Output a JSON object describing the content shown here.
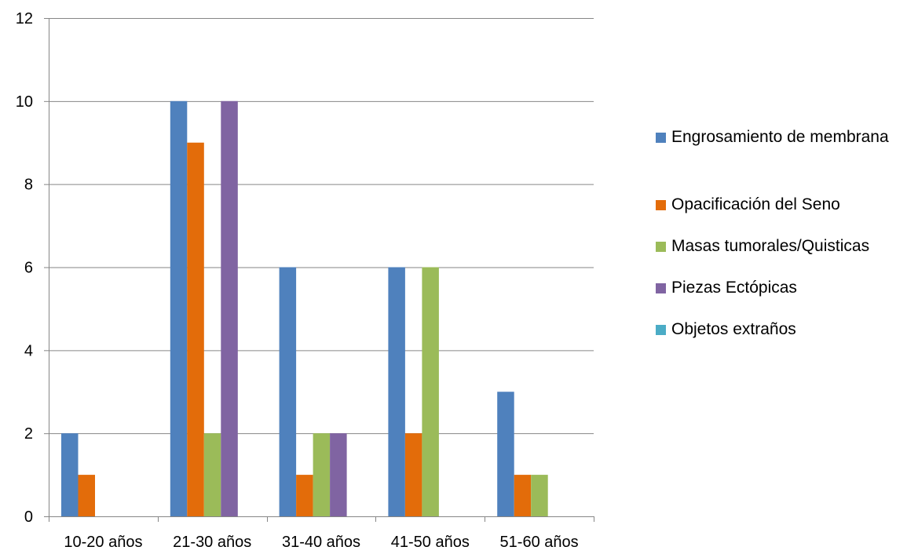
{
  "chart_data": {
    "type": "bar",
    "categories": [
      "10-20 años",
      "21-30 años",
      "31-40 años",
      "41-50 años",
      "51-60 años"
    ],
    "series": [
      {
        "name": "Engrosamiento de membrana",
        "color": "#4F81BD",
        "values": [
          2,
          10,
          6,
          6,
          3
        ]
      },
      {
        "name": "Opacificación del Seno",
        "color": "#E36C0A",
        "values": [
          1,
          9,
          1,
          2,
          1
        ]
      },
      {
        "name": "Masas tumorales/Quisticas",
        "color": "#9BBB59",
        "values": [
          0,
          2,
          2,
          6,
          1
        ]
      },
      {
        "name": "Piezas Ectópicas",
        "color": "#8064A2",
        "values": [
          0,
          10,
          2,
          0,
          0
        ]
      },
      {
        "name": "Objetos extraños",
        "color": "#4BACC6",
        "values": [
          0,
          0,
          0,
          0,
          0
        ]
      }
    ],
    "ylim": [
      0,
      12
    ],
    "yticks": [
      0,
      2,
      4,
      6,
      8,
      10,
      12
    ],
    "grid": true,
    "legend_position": "right"
  }
}
